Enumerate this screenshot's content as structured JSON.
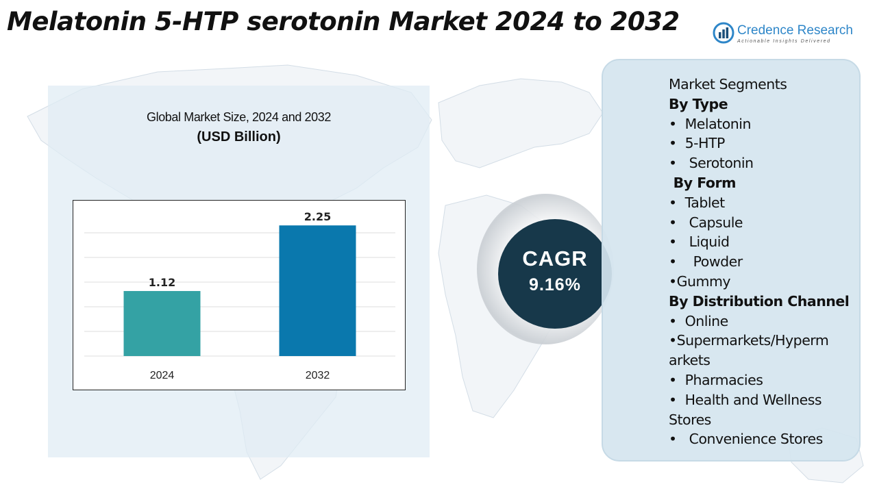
{
  "header": {
    "title": "Melatonin 5-HTP serotonin Market 2024 to 2032"
  },
  "logo": {
    "name": "Credence Research",
    "tagline": "Actionable Insights Delivered"
  },
  "chart_data": {
    "type": "bar",
    "title": "Global Market Size, 2024 and 2032",
    "unit": "(USD Billion)",
    "categories": [
      "2024",
      "2032"
    ],
    "values": [
      1.12,
      2.25
    ],
    "value_labels": [
      "1.12",
      "2.25"
    ],
    "colors": [
      "#34a2a4",
      "#0a78ad"
    ],
    "ylim": [
      0,
      2.5
    ],
    "grid": true,
    "legend": "none"
  },
  "cagr": {
    "label": "CAGR",
    "value": "9.16%"
  },
  "segments": {
    "lines": [
      {
        "text": "Market Segments",
        "heading": false
      },
      {
        "text": "By Type",
        "heading": true
      },
      {
        "text": "•  Melatonin",
        "heading": false
      },
      {
        "text": "•  5-HTP",
        "heading": false
      },
      {
        "text": "•   Serotonin",
        "heading": false
      },
      {
        "text": " By Form",
        "heading": true
      },
      {
        "text": "•  Tablet",
        "heading": false
      },
      {
        "text": "•   Capsule",
        "heading": false
      },
      {
        "text": "•   Liquid",
        "heading": false
      },
      {
        "text": "•    Powder",
        "heading": false
      },
      {
        "text": "•Gummy",
        "heading": false
      },
      {
        "text": "By Distribution Channel",
        "heading": true
      },
      {
        "text": "•  Online",
        "heading": false
      },
      {
        "text": "•Supermarkets/Hyperm",
        "heading": false
      },
      {
        "text": "arkets",
        "heading": false
      },
      {
        "text": "•  Pharmacies",
        "heading": false
      },
      {
        "text": "•  Health and Wellness",
        "heading": false
      },
      {
        "text": "Stores",
        "heading": false
      },
      {
        "text": "•   Convenience Stores",
        "heading": false
      }
    ]
  },
  "colors": {
    "cagr_circle": "#17384a",
    "panel_bg": "#dfebf4",
    "logo_blue": "#2e86c8"
  }
}
